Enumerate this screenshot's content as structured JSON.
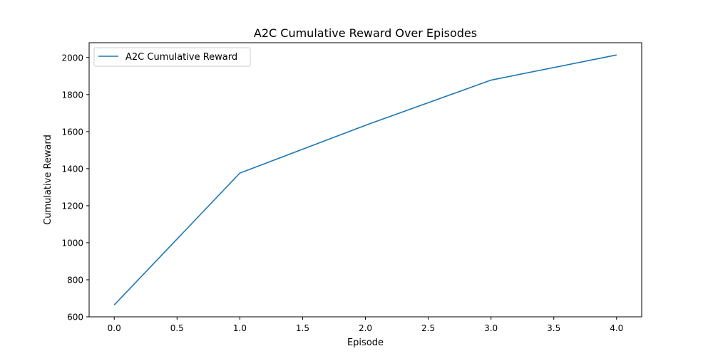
{
  "chart_data": {
    "type": "line",
    "title": "A2C Cumulative Reward Over Episodes",
    "xlabel": "Episode",
    "ylabel": "Cumulative Reward",
    "xlim": [
      -0.2,
      4.2
    ],
    "ylim": [
      600,
      2080
    ],
    "x_ticks": [
      "0.0",
      "0.5",
      "1.0",
      "1.5",
      "2.0",
      "2.5",
      "3.0",
      "3.5",
      "4.0"
    ],
    "y_ticks": [
      "600",
      "800",
      "1000",
      "1200",
      "1400",
      "1600",
      "1800",
      "2000"
    ],
    "grid": false,
    "legend_position": "top-left",
    "series": [
      {
        "name": "A2C Cumulative Reward",
        "color": "#1f77b4",
        "x": [
          0,
          1,
          2,
          3,
          4
        ],
        "y": [
          664,
          1376,
          1634,
          1878,
          2014
        ]
      }
    ]
  }
}
